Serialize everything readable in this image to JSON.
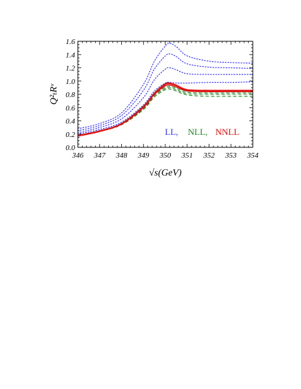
{
  "chart_data": {
    "type": "line",
    "xlabel": "√s(GeV)",
    "ylabel": "Q²ₜRᵛ",
    "xlim": [
      346,
      354
    ],
    "ylim": [
      0.0,
      1.6
    ],
    "x_ticks": [
      "346",
      "347",
      "348",
      "349",
      "350",
      "351",
      "352",
      "353",
      "354"
    ],
    "y_ticks": [
      "0.0",
      "0.2",
      "0.4",
      "0.6",
      "0.8",
      "1.0",
      "1.2",
      "1.4",
      "1.6"
    ],
    "grid": false,
    "legend": [
      {
        "label": "LL,",
        "color": "#3333ff",
        "style": "dotted"
      },
      {
        "label": "NLL,",
        "color": "#228822",
        "style": "dashed"
      },
      {
        "label": "NNLL",
        "color": "#dd1111",
        "style": "solid"
      }
    ],
    "series": [
      {
        "group": "LL",
        "color": "#3333ff",
        "style": "dotted",
        "x": [
          346,
          347,
          348,
          349,
          349.5,
          350,
          350.2,
          350.5,
          351,
          352,
          353,
          354
        ],
        "y": [
          0.28,
          0.36,
          0.52,
          0.95,
          1.3,
          1.53,
          1.57,
          1.52,
          1.38,
          1.3,
          1.28,
          1.27
        ]
      },
      {
        "group": "LL",
        "color": "#3333ff",
        "style": "dotted",
        "x": [
          346,
          347,
          348,
          349,
          349.5,
          350,
          350.2,
          350.5,
          351,
          352,
          353,
          354
        ],
        "y": [
          0.25,
          0.33,
          0.48,
          0.86,
          1.18,
          1.38,
          1.41,
          1.37,
          1.26,
          1.21,
          1.2,
          1.19
        ]
      },
      {
        "group": "LL",
        "color": "#3333ff",
        "style": "dotted",
        "x": [
          346,
          347,
          348,
          349,
          349.5,
          350,
          350.2,
          350.5,
          351,
          352,
          353,
          354
        ],
        "y": [
          0.22,
          0.3,
          0.43,
          0.75,
          1.02,
          1.18,
          1.2,
          1.17,
          1.11,
          1.1,
          1.1,
          1.1
        ]
      },
      {
        "group": "LL",
        "color": "#3333ff",
        "style": "dotted",
        "x": [
          346,
          347,
          348,
          349,
          349.5,
          350,
          350.2,
          350.5,
          351,
          352,
          353,
          354
        ],
        "y": [
          0.2,
          0.27,
          0.38,
          0.64,
          0.85,
          0.97,
          0.98,
          0.97,
          0.97,
          0.98,
          0.98,
          0.99
        ]
      },
      {
        "group": "NLL",
        "color": "#228822",
        "style": "dashed",
        "x": [
          346,
          347,
          348,
          349,
          349.5,
          350,
          350.2,
          350.5,
          351,
          352,
          353,
          354
        ],
        "y": [
          0.18,
          0.24,
          0.34,
          0.57,
          0.76,
          0.87,
          0.88,
          0.85,
          0.79,
          0.77,
          0.77,
          0.77
        ]
      },
      {
        "group": "NLL",
        "color": "#228822",
        "style": "dashed",
        "x": [
          346,
          347,
          348,
          349,
          349.5,
          350,
          350.2,
          350.5,
          351,
          352,
          353,
          354
        ],
        "y": [
          0.18,
          0.24,
          0.35,
          0.58,
          0.78,
          0.89,
          0.9,
          0.87,
          0.81,
          0.8,
          0.8,
          0.8
        ]
      },
      {
        "group": "NLL",
        "color": "#228822",
        "style": "dashed",
        "x": [
          346,
          347,
          348,
          349,
          349.5,
          350,
          350.2,
          350.5,
          351,
          352,
          353,
          354
        ],
        "y": [
          0.18,
          0.25,
          0.35,
          0.59,
          0.79,
          0.91,
          0.92,
          0.89,
          0.83,
          0.82,
          0.82,
          0.82
        ]
      },
      {
        "group": "NNLL",
        "color": "#dd1111",
        "style": "solid",
        "x": [
          346,
          347,
          348,
          349,
          349.5,
          350,
          350.2,
          350.5,
          351,
          352,
          353,
          354
        ],
        "y": [
          0.17,
          0.24,
          0.35,
          0.6,
          0.8,
          0.93,
          0.94,
          0.91,
          0.85,
          0.84,
          0.84,
          0.84
        ]
      },
      {
        "group": "NNLL",
        "color": "#dd1111",
        "style": "solid",
        "x": [
          346,
          347,
          348,
          349,
          349.5,
          350,
          350.2,
          350.5,
          351,
          352,
          353,
          354
        ],
        "y": [
          0.17,
          0.24,
          0.36,
          0.61,
          0.81,
          0.95,
          0.96,
          0.93,
          0.86,
          0.85,
          0.85,
          0.85
        ]
      },
      {
        "group": "NNLL",
        "color": "#dd1111",
        "style": "solid",
        "x": [
          346,
          347,
          348,
          349,
          349.5,
          350,
          350.2,
          350.5,
          351,
          352,
          353,
          354
        ],
        "y": [
          0.18,
          0.25,
          0.36,
          0.62,
          0.82,
          0.96,
          0.97,
          0.94,
          0.87,
          0.86,
          0.86,
          0.86
        ]
      }
    ]
  }
}
